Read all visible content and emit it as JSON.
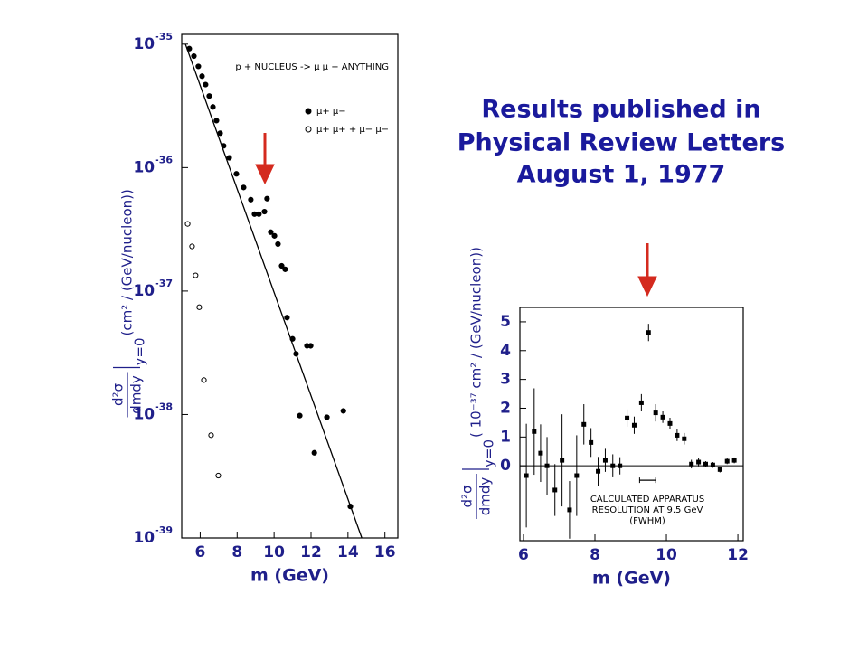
{
  "headline": [
    "Results published in",
    "Physical Review Letters",
    "August 1, 1977"
  ],
  "chart_data": [
    {
      "type": "scatter",
      "yscale": "log",
      "annotation": "p + NUCLEUS -> μ μ + ANYTHING",
      "x_label": "m (GeV)",
      "y_label": {
        "numerator": "d²σ",
        "denominator": "dmdy",
        "subscript": "y=0",
        "units": "(cm² / (GeV/nucleon))"
      },
      "xlim": [
        5,
        16.7
      ],
      "xticks": [
        6,
        8,
        10,
        12,
        14,
        16
      ],
      "ylim": [
        1e-39,
        1.2e-35
      ],
      "yticks": [
        {
          "value": 1e-39,
          "label": "10",
          "exponent": "-39"
        },
        {
          "value": 1e-38,
          "label": "10",
          "exponent": "-38"
        },
        {
          "value": 1e-37,
          "label": "10",
          "exponent": "-37"
        },
        {
          "value": 1e-36,
          "label": "10",
          "exponent": "-36"
        },
        {
          "value": 1e-35,
          "label": "10",
          "exponent": "-35"
        }
      ],
      "legend": "upper right",
      "series": [
        {
          "name": "μ+ μ−",
          "marker": "filled",
          "color": "#000000",
          "x": [
            5.41,
            5.66,
            5.9,
            6.1,
            6.29,
            6.49,
            6.69,
            6.88,
            7.08,
            7.27,
            7.57,
            7.96,
            8.35,
            8.74,
            8.94,
            9.18,
            9.48,
            9.62,
            9.82,
            10.02,
            10.21,
            10.41,
            10.6,
            10.7,
            11.0,
            11.19,
            11.39,
            11.78,
            11.98,
            12.18,
            12.86,
            13.75,
            14.13
          ],
          "values": [
            9.2e-36,
            8e-36,
            6.6e-36,
            5.5e-36,
            4.7e-36,
            3.8e-36,
            3.1e-36,
            2.4e-36,
            1.9e-36,
            1.5e-36,
            1.2e-36,
            8.9e-37,
            6.9e-37,
            5.5e-37,
            4.2e-37,
            4.2e-37,
            4.4e-37,
            5.6e-37,
            3e-37,
            2.8e-37,
            2.4e-37,
            1.6e-37,
            1.5e-37,
            6.1e-38,
            4.1e-38,
            3.1e-38,
            9.8e-39,
            3.6e-38,
            3.6e-38,
            4.9e-39,
            9.5e-39,
            1.07e-38,
            1.8e-39
          ]
        },
        {
          "name": "μ+ μ+ + μ− μ−",
          "marker": "open",
          "color": "#000000",
          "x": [
            5.32,
            5.56,
            5.75,
            5.95,
            6.2,
            6.59,
            6.98
          ],
          "values": [
            3.5e-37,
            2.3e-37,
            1.34e-37,
            7.4e-38,
            1.9e-38,
            6.8e-39,
            3.2e-39
          ]
        }
      ],
      "fit_line": {
        "x": [
          5.2,
          14.75
        ],
        "values": [
          1e-35,
          1e-39
        ],
        "color": "#000000"
      }
    },
    {
      "type": "errorbar",
      "annotation": [
        "CALCULATED APPARATUS",
        "RESOLUTION AT 9.5 GeV",
        "(FWHM)"
      ],
      "x_label": "m (GeV)",
      "y_label": {
        "numerator": "d²σ",
        "denominator": "dmdy",
        "subscript": "y=0",
        "units": "( 10⁻³⁷ cm² / (GeV/nucleon))"
      },
      "xlim": [
        5.9,
        12.15
      ],
      "xticks": [
        6,
        8,
        10,
        12
      ],
      "ylim": [
        -2.6,
        5.5
      ],
      "yticks": [
        0,
        1,
        2,
        3,
        4,
        5
      ],
      "zero_line": true,
      "x": [
        6.08,
        6.3,
        6.48,
        6.66,
        6.88,
        7.08,
        7.29,
        7.49,
        7.69,
        7.89,
        8.09,
        8.29,
        8.5,
        8.7,
        8.9,
        9.1,
        9.3,
        9.5,
        9.7,
        9.9,
        10.1,
        10.3,
        10.5,
        10.7,
        10.9,
        11.1,
        11.3,
        11.5,
        11.7,
        11.9
      ],
      "values": [
        -0.34,
        1.19,
        0.44,
        0,
        -0.84,
        0.19,
        -1.53,
        -0.34,
        1.44,
        0.81,
        -0.19,
        0.19,
        0,
        0,
        1.66,
        1.41,
        2.19,
        4.63,
        1.84,
        1.69,
        1.47,
        1.06,
        0.94,
        0.06,
        0.13,
        0.06,
        0.03,
        -0.13,
        0.16,
        0.19
      ],
      "errors": [
        1.8,
        1.5,
        1.0,
        1.0,
        0.9,
        1.6,
        1.0,
        1.4,
        0.7,
        0.5,
        0.5,
        0.4,
        0.4,
        0.3,
        0.3,
        0.3,
        0.3,
        0.3,
        0.3,
        0.2,
        0.2,
        0.2,
        0.2,
        0.15,
        0.15,
        0.1,
        0.1,
        0.1,
        0.1,
        0.1
      ],
      "color": "#000000",
      "resolution_bar": {
        "x": [
          9.25,
          9.7
        ],
        "y": -0.5
      }
    }
  ]
}
